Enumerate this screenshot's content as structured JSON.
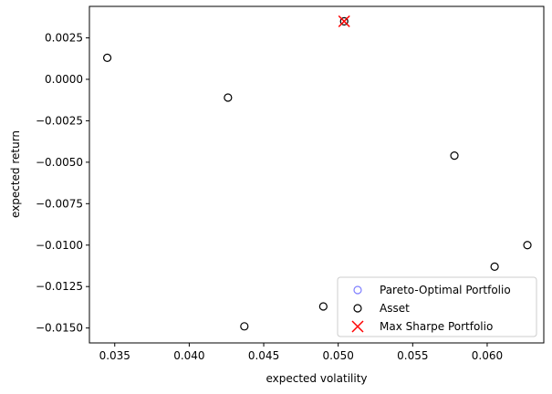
{
  "chart_data": {
    "type": "scatter",
    "xlabel": "expected volatility",
    "ylabel": "expected return",
    "xlim": [
      0.0333,
      0.0638
    ],
    "ylim": [
      -0.0159,
      0.0044
    ],
    "xticks": [
      0.035,
      0.04,
      0.045,
      0.05,
      0.055,
      0.06
    ],
    "xtick_labels": [
      "0.035",
      "0.040",
      "0.045",
      "0.050",
      "0.055",
      "0.060"
    ],
    "yticks": [
      0.0025,
      0.0,
      -0.0025,
      -0.005,
      -0.0075,
      -0.01,
      -0.0125,
      -0.015
    ],
    "ytick_labels": [
      "0.0025",
      "0.0000",
      "−0.0025",
      "−0.0050",
      "−0.0075",
      "−0.0100",
      "−0.0125",
      "−0.0150"
    ],
    "grid": false,
    "legend_position": "lower-right",
    "series": [
      {
        "name": "Pareto-Optimal Portfolio",
        "marker": "circle-open",
        "color": "#7f7fff",
        "points": []
      },
      {
        "name": "Asset",
        "marker": "circle-open",
        "color": "#000000",
        "points": [
          {
            "x": 0.0345,
            "y": 0.0013
          },
          {
            "x": 0.0426,
            "y": -0.0011
          },
          {
            "x": 0.0437,
            "y": -0.0149
          },
          {
            "x": 0.049,
            "y": -0.0137
          },
          {
            "x": 0.0504,
            "y": 0.0035
          },
          {
            "x": 0.0578,
            "y": -0.0046
          },
          {
            "x": 0.0605,
            "y": -0.0113
          },
          {
            "x": 0.0627,
            "y": -0.01
          }
        ]
      },
      {
        "name": "Max Sharpe Portfolio",
        "marker": "x",
        "color": "#ff0000",
        "points": [
          {
            "x": 0.0504,
            "y": 0.0035
          }
        ]
      }
    ]
  }
}
